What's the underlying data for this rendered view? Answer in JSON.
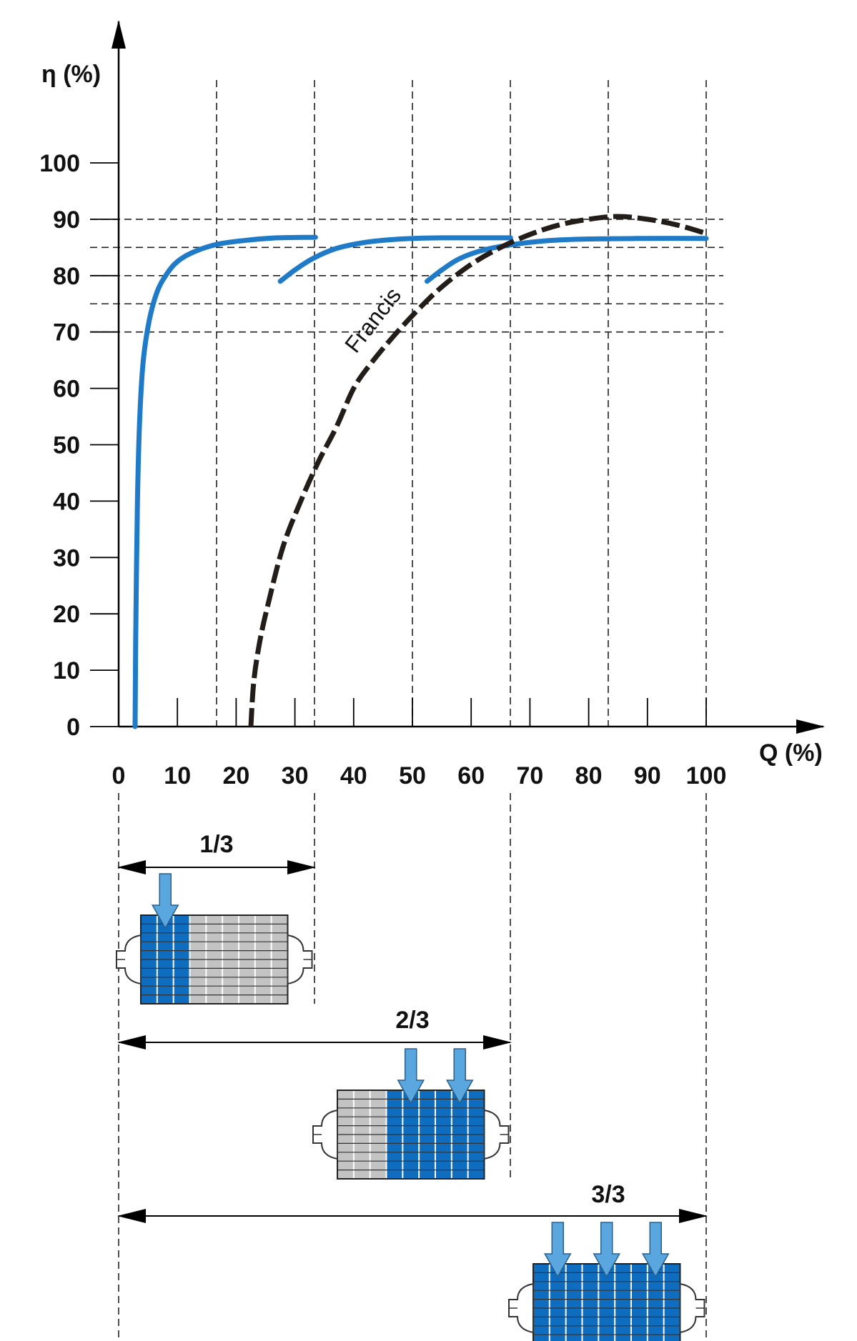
{
  "chart_data": {
    "type": "line",
    "xlabel": "Q (%)",
    "ylabel": "η (%)",
    "xlim": [
      0,
      100
    ],
    "ylim": [
      0,
      100
    ],
    "x_ticks": [
      0,
      10,
      20,
      30,
      40,
      50,
      60,
      70,
      80,
      90,
      100
    ],
    "y_ticks": [
      0,
      10,
      20,
      30,
      40,
      50,
      60,
      70,
      80,
      90,
      100
    ],
    "reference_x": [
      16.67,
      33.33,
      50,
      66.67,
      83.33,
      100
    ],
    "reference_y": [
      70,
      75,
      80,
      85,
      90
    ],
    "series": [
      {
        "name": "",
        "style": "solid",
        "color": "#1f7bc8",
        "points": [
          [
            2.8,
            0
          ],
          [
            2.9,
            15
          ],
          [
            3.2,
            40
          ],
          [
            3.6,
            55
          ],
          [
            4.2,
            65
          ],
          [
            5.2,
            72
          ],
          [
            6.5,
            77
          ],
          [
            8,
            80
          ],
          [
            10,
            82.5
          ],
          [
            13,
            84.3
          ],
          [
            17,
            85.6
          ],
          [
            22,
            86.3
          ],
          [
            27,
            86.7
          ],
          [
            33.5,
            86.8
          ]
        ]
      },
      {
        "name": "",
        "style": "solid",
        "color": "#1f7bc8",
        "points": [
          [
            27.5,
            79
          ],
          [
            30,
            81
          ],
          [
            33,
            83
          ],
          [
            37,
            84.8
          ],
          [
            42,
            85.9
          ],
          [
            48,
            86.5
          ],
          [
            55,
            86.7
          ],
          [
            66.7,
            86.7
          ]
        ]
      },
      {
        "name": "",
        "style": "solid",
        "color": "#1f7bc8",
        "points": [
          [
            52.5,
            79
          ],
          [
            55,
            81
          ],
          [
            58,
            83
          ],
          [
            62,
            84.5
          ],
          [
            67,
            85.5
          ],
          [
            73,
            86.2
          ],
          [
            80,
            86.5
          ],
          [
            90,
            86.6
          ],
          [
            100,
            86.6
          ]
        ]
      },
      {
        "name": "Francis",
        "style": "dashed",
        "color": "#231d1a",
        "points": [
          [
            22.5,
            0
          ],
          [
            23,
            8
          ],
          [
            24,
            15
          ],
          [
            25.5,
            22
          ],
          [
            28,
            32
          ],
          [
            31,
            40
          ],
          [
            34,
            47
          ],
          [
            37,
            53
          ],
          [
            40,
            60
          ],
          [
            43,
            64.5
          ],
          [
            47,
            69.5
          ],
          [
            51,
            74
          ],
          [
            55,
            78
          ],
          [
            60,
            82
          ],
          [
            65,
            85
          ],
          [
            70,
            87.3
          ],
          [
            75,
            89
          ],
          [
            80,
            90
          ],
          [
            85,
            90.5
          ],
          [
            90,
            90
          ],
          [
            95,
            89
          ],
          [
            100,
            87.5
          ]
        ]
      }
    ],
    "ranges": [
      {
        "label": "1/3",
        "from": 0,
        "to": 33.33,
        "active_sections": 1
      },
      {
        "label": "2/3",
        "from": 0,
        "to": 66.67,
        "active_sections": 2
      },
      {
        "label": "3/3",
        "from": 0,
        "to": 100,
        "active_sections": 3
      }
    ]
  },
  "colors": {
    "curve_blue": "#1f7bc8",
    "francis": "#231d1a",
    "section_active": "#0f6dbf",
    "section_inactive": "#c3c3c3",
    "inflow_arrow": "#5aa7e0"
  }
}
